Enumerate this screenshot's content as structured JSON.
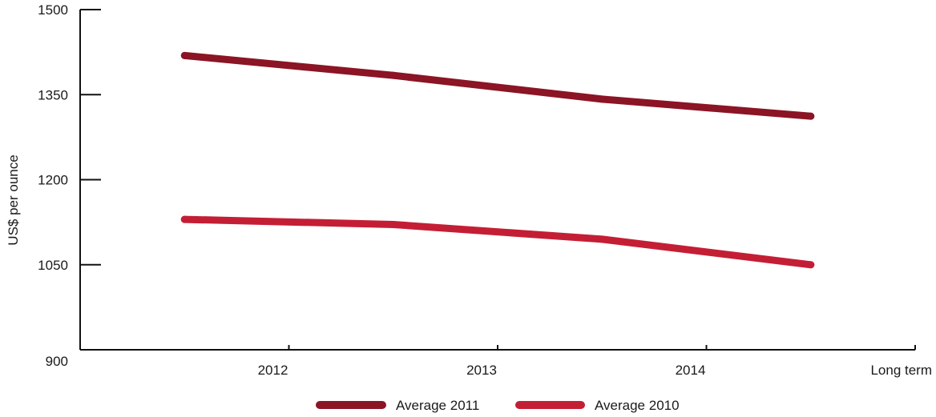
{
  "chart_data": {
    "type": "line",
    "title": "",
    "xlabel": "",
    "ylabel": "US$ per ounce",
    "categories": [
      "2012",
      "2013",
      "2014",
      "Long term"
    ],
    "ylim": [
      900,
      1500
    ],
    "yticks": [
      900,
      1050,
      1200,
      1350,
      1500
    ],
    "grid": false,
    "legend": "bottom-center",
    "series": [
      {
        "name": "Average 2011",
        "color": "#8b1425",
        "x": [
          2011.5,
          2012.5,
          2013.5,
          2014.5
        ],
        "values": [
          1419,
          1384,
          1342,
          1312
        ]
      },
      {
        "name": "Average 2010",
        "color": "#c41e35",
        "x": [
          2011.5,
          2012.5,
          2013.5,
          2014.5
        ],
        "values": [
          1130,
          1121,
          1095,
          1050
        ]
      }
    ]
  }
}
